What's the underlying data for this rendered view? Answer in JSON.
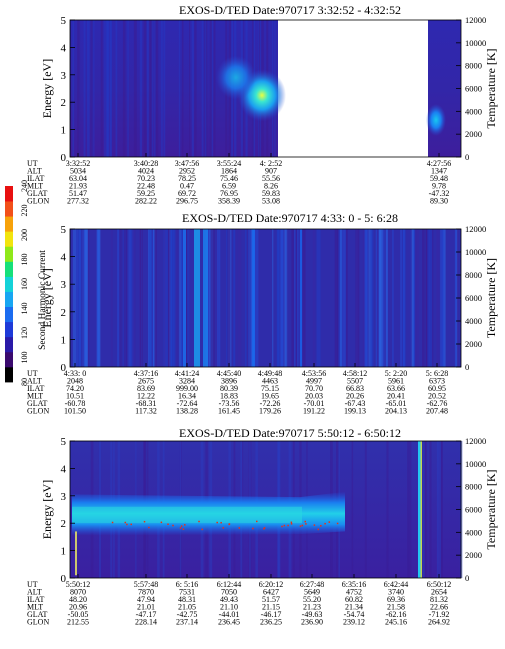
{
  "colorbar": {
    "label": "Second Harmonic Current",
    "ticks": [
      "80",
      "100",
      "120",
      "140",
      "160",
      "180",
      "200",
      "220",
      "240"
    ],
    "colors": [
      "#000000",
      "#3a0a6e",
      "#2a1aa8",
      "#1e3ad8",
      "#1b6cf0",
      "#17a6f2",
      "#14d2d8",
      "#16e07a",
      "#8fe81a",
      "#f2e40e",
      "#f7a20a",
      "#f2501a",
      "#e81010"
    ]
  },
  "chart_data": [
    {
      "type": "heatmap",
      "title": "EXOS-D/TED   Date:970717  3:32:52 - 4:32:52",
      "ylabel": "Energy [eV]",
      "ylabel_right": "Temperature [K]",
      "ylim": [
        0,
        5
      ],
      "yticks": [
        "0",
        "1",
        "2",
        "3",
        "4",
        "5"
      ],
      "ylim_right": [
        0,
        12000
      ],
      "yticks_right": [
        "0",
        "2000",
        "4000",
        "6000",
        "8000",
        "10000",
        "12000"
      ],
      "time_rows": [
        {
          "name": "UT",
          "values": [
            "3:32:52",
            "3:40:28",
            "3:47:56",
            "3:55:24",
            "4: 2:52",
            "",
            "",
            "",
            "4:27:56"
          ]
        },
        {
          "name": "ALT",
          "values": [
            "5034",
            "4024",
            "2952",
            "1864",
            "907",
            "",
            "",
            "",
            "1347"
          ]
        },
        {
          "name": "ILAT",
          "values": [
            "63.04",
            "70.23",
            "78.25",
            "75.46",
            "55.56",
            "",
            "",
            "",
            "59.48"
          ]
        },
        {
          "name": "MLT",
          "values": [
            "21.93",
            "22.48",
            "0.47",
            "6.59",
            "8.26",
            "",
            "",
            "",
            "9.78"
          ]
        },
        {
          "name": "GLAT",
          "values": [
            "51.47",
            "59.25",
            "69.72",
            "76.95",
            "59.83",
            "",
            "",
            "",
            "-47.32"
          ]
        },
        {
          "name": "GLON",
          "values": [
            "277.32",
            "282.22",
            "296.75",
            "358.39",
            "53.08",
            "",
            "",
            "",
            "89.30"
          ]
        }
      ]
    },
    {
      "type": "heatmap",
      "title": "EXOS-D/TED   Date:970717  4:33: 0 - 5: 6:28",
      "ylabel": "Energy [eV]",
      "ylabel_right": "Temperature [K]",
      "ylim": [
        0,
        5
      ],
      "yticks": [
        "0",
        "1",
        "2",
        "3",
        "4",
        "5"
      ],
      "ylim_right": [
        0,
        12000
      ],
      "yticks_right": [
        "0",
        "2000",
        "4000",
        "6000",
        "8000",
        "10000",
        "12000"
      ],
      "time_rows": [
        {
          "name": "UT",
          "values": [
            "4:33: 0",
            "4:37:16",
            "4:41:24",
            "4:45:40",
            "4:49:48",
            "4:53:56",
            "4:58:12",
            "5: 2:20",
            "5: 6:28"
          ]
        },
        {
          "name": "ALT",
          "values": [
            "2048",
            "2675",
            "3284",
            "3896",
            "4463",
            "4997",
            "5507",
            "5961",
            "6373"
          ]
        },
        {
          "name": "ILAT",
          "values": [
            "74.20",
            "83.69",
            "999.00",
            "80.39",
            "75.15",
            "70.70",
            "66.83",
            "63.66",
            "60.95"
          ]
        },
        {
          "name": "MLT",
          "values": [
            "10.51",
            "12.22",
            "16.34",
            "18.83",
            "19.65",
            "20.03",
            "20.26",
            "20.41",
            "20.52"
          ]
        },
        {
          "name": "GLAT",
          "values": [
            "-60.78",
            "-68.31",
            "-72.64",
            "-73.56",
            "-72.26",
            "-70.01",
            "-67.43",
            "-65.01",
            "-62.76"
          ]
        },
        {
          "name": "GLON",
          "values": [
            "101.50",
            "117.32",
            "138.28",
            "161.45",
            "179.26",
            "191.22",
            "199.13",
            "204.13",
            "207.48"
          ]
        }
      ]
    },
    {
      "type": "heatmap",
      "title": "EXOS-D/TED   Date:970717  5:50:12 - 6:50:12",
      "ylabel": "Energy [eV]",
      "ylabel_right": "Temperature [K]",
      "ylim": [
        0,
        5
      ],
      "yticks": [
        "0",
        "1",
        "2",
        "3",
        "4",
        "5"
      ],
      "ylim_right": [
        0,
        12000
      ],
      "yticks_right": [
        "0",
        "2000",
        "4000",
        "6000",
        "8000",
        "10000",
        "12000"
      ],
      "time_rows": [
        {
          "name": "UT",
          "values": [
            "5:50:12",
            "5:57:48",
            "6: 5:16",
            "6:12:44",
            "6:20:12",
            "6:27:48",
            "6:35:16",
            "6:42:44",
            "6:50:12"
          ]
        },
        {
          "name": "ALT",
          "values": [
            "8070",
            "7870",
            "7531",
            "7050",
            "6427",
            "5649",
            "4752",
            "3740",
            "2654"
          ]
        },
        {
          "name": "ILAT",
          "values": [
            "48.20",
            "47.94",
            "48.31",
            "49.43",
            "51.57",
            "55.20",
            "60.82",
            "69.36",
            "81.32"
          ]
        },
        {
          "name": "MLT",
          "values": [
            "20.96",
            "21.01",
            "21.05",
            "21.10",
            "21.15",
            "21.23",
            "21.34",
            "21.58",
            "22.66"
          ]
        },
        {
          "name": "GLAT",
          "values": [
            "-50.05",
            "-47.17",
            "-42.75",
            "-44.01",
            "-46.17",
            "-49.63",
            "-54.74",
            "-62.16",
            "-71.92"
          ]
        },
        {
          "name": "GLON",
          "values": [
            "212.55",
            "228.14",
            "237.14",
            "236.45",
            "236.25",
            "236.90",
            "239.12",
            "245.16",
            "264.92"
          ]
        }
      ]
    }
  ]
}
